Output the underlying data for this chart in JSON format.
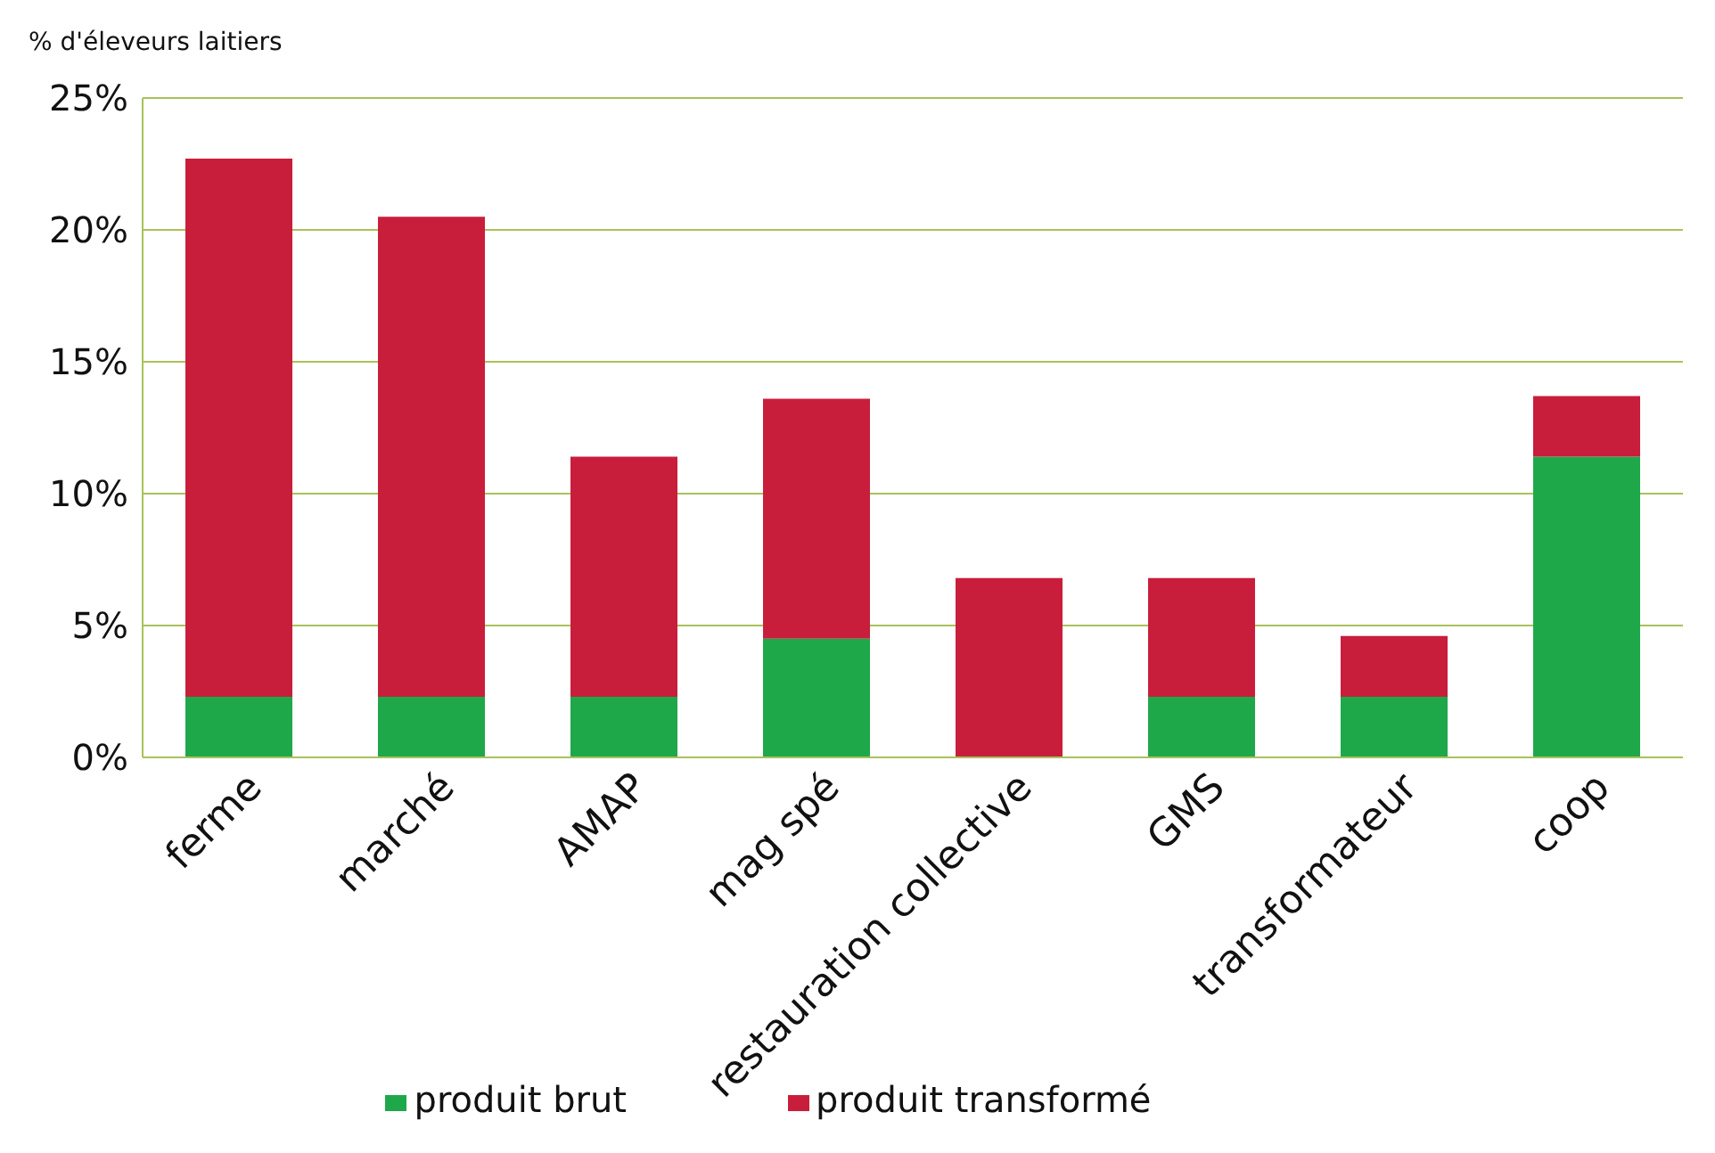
{
  "chart_data": {
    "type": "bar",
    "stacked": true,
    "ylabel": "% d'éleveurs laitiers",
    "categories": [
      "ferme",
      "marché",
      "AMAP",
      "mag spé",
      "restauration collective",
      "GMS",
      "transformateur",
      "coop"
    ],
    "series": [
      {
        "name": "produit brut",
        "color": "#1ea84a",
        "values": [
          2.3,
          2.3,
          2.3,
          4.5,
          0,
          2.3,
          2.3,
          11.4
        ]
      },
      {
        "name": "produit transformé",
        "color": "#c81e3c",
        "values": [
          20.4,
          18.2,
          9.1,
          9.1,
          6.8,
          4.5,
          2.3,
          2.3
        ]
      }
    ],
    "ylim": [
      0,
      25
    ],
    "yticks": [
      {
        "value": 0,
        "label": "0%"
      },
      {
        "value": 5,
        "label": "5%"
      },
      {
        "value": 10,
        "label": "10%"
      },
      {
        "value": 15,
        "label": "15%"
      },
      {
        "value": 20,
        "label": "20%"
      },
      {
        "value": 25,
        "label": "25%"
      }
    ],
    "grid": "y",
    "legend": "bottom"
  }
}
